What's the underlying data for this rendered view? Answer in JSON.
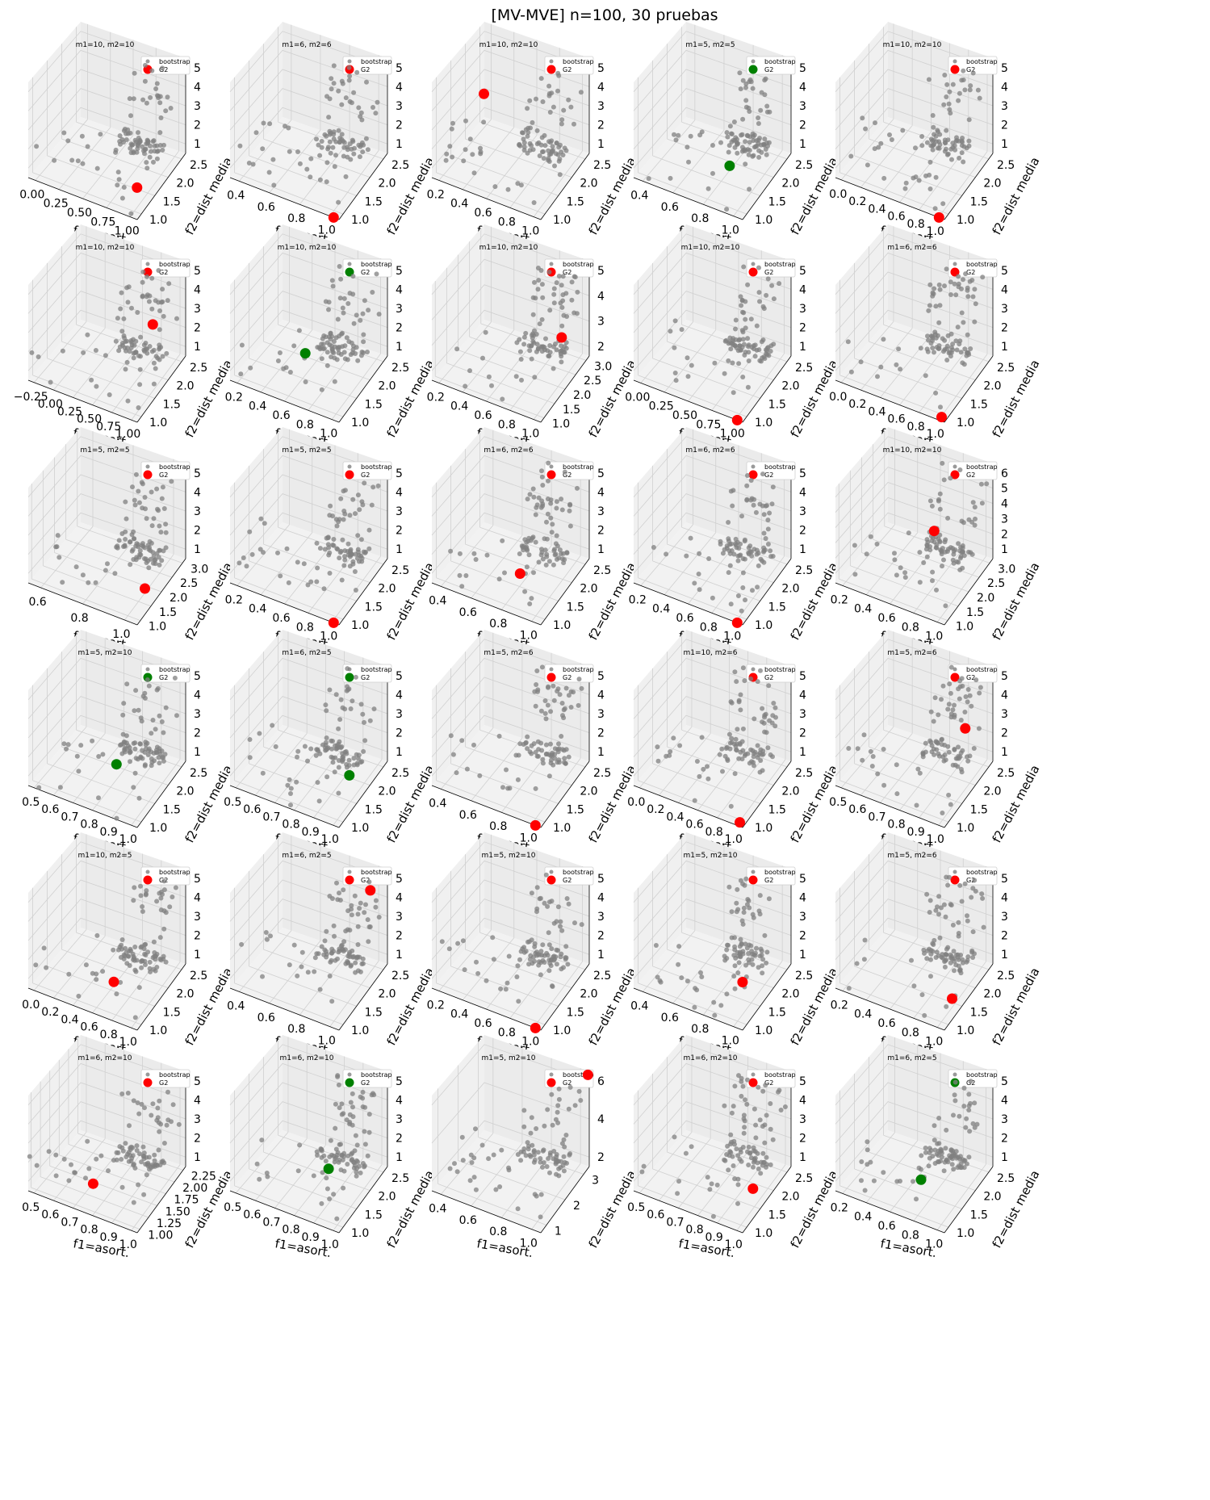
{
  "figure": {
    "title": "[MV-MVE] n=100, 30 pruebas",
    "grid": {
      "rows": 6,
      "cols": 5
    }
  },
  "colors": {
    "bootstrap": "#808080",
    "g2_red": "#ff0000",
    "g2_green": "#008000",
    "pane_left": "#f0f0f0",
    "pane_right": "#ebebeb",
    "pane_floor": "#f2f2f2",
    "gridline": "#d0d0d0"
  },
  "chart_data": [
    {
      "type": "scatter",
      "title": "m1=10, m2=10",
      "xlabel": "f1=asort.",
      "ylabel": "f2=dist media",
      "xticks": [
        "0.00",
        "0.25",
        "0.50",
        "0.75",
        "1.00"
      ],
      "yticks": [
        "1.0",
        "1.5",
        "2.0",
        "2.5"
      ],
      "zticks": [
        "1",
        "2",
        "3",
        "4",
        "5"
      ],
      "legend": [
        "bootstrap",
        "G2"
      ],
      "g2_color": "red",
      "g2": [
        1.0,
        1.2,
        2.0
      ],
      "seed": 1
    },
    {
      "type": "scatter",
      "title": "m1=6, m2=6",
      "xlabel": "f1=asort.",
      "ylabel": "f2=dist media",
      "xticks": [
        "0.4",
        "0.6",
        "0.8",
        "1.0"
      ],
      "yticks": [
        "1.0",
        "1.5",
        "2.0",
        "2.5"
      ],
      "zticks": [
        "1",
        "2",
        "3",
        "4",
        "5"
      ],
      "legend": [
        "bootstrap",
        "G2"
      ],
      "g2_color": "red",
      "g2": [
        1.0,
        1.0,
        1.0
      ],
      "seed": 2
    },
    {
      "type": "scatter",
      "title": "m1=10, m2=10",
      "xlabel": "f1=asort.",
      "ylabel": "f2=dist media",
      "xticks": [
        "0.2",
        "0.4",
        "0.6",
        "0.8",
        "1.0"
      ],
      "yticks": [
        "1.0",
        "1.5",
        "2.0",
        "2.5"
      ],
      "zticks": [
        "1",
        "2",
        "3",
        "4",
        "5"
      ],
      "legend": [
        "bootstrap",
        "G2"
      ],
      "g2_color": "red",
      "g2": [
        0.3,
        1.8,
        4.0
      ],
      "seed": 3
    },
    {
      "type": "scatter",
      "title": "m1=5, m2=5",
      "xlabel": "f1=asort.",
      "ylabel": "f2=dist media",
      "xticks": [
        "0.4",
        "0.6",
        "0.8",
        "1.0"
      ],
      "yticks": [
        "1.0",
        "1.5",
        "2.0",
        "2.5"
      ],
      "zticks": [
        "1",
        "2",
        "3",
        "4",
        "5"
      ],
      "legend": [
        "bootstrap",
        "G2"
      ],
      "g2_color": "green",
      "g2": [
        0.8,
        1.5,
        2.2
      ],
      "seed": 4
    },
    {
      "type": "scatter",
      "title": "m1=10, m2=10",
      "xlabel": "f1=asort.",
      "ylabel": "f2=dist media",
      "xticks": [
        "0.0",
        "0.2",
        "0.4",
        "0.6",
        "0.8",
        "1.0"
      ],
      "yticks": [
        "1.0",
        "1.5",
        "2.0",
        "2.5"
      ],
      "zticks": [
        "1",
        "2",
        "3",
        "4",
        "5"
      ],
      "legend": [
        "bootstrap",
        "G2"
      ],
      "g2_color": "red",
      "g2": [
        1.0,
        1.0,
        1.0
      ],
      "seed": 5
    },
    {
      "type": "scatter",
      "title": "m1=10, m2=10",
      "xlabel": "f1=asort.",
      "ylabel": "f2=dist media",
      "xticks": [
        "−0.25",
        "0.00",
        "0.25",
        "0.50",
        "0.75",
        "1.00"
      ],
      "yticks": [
        "1.0",
        "1.5",
        "2.0",
        "2.5"
      ],
      "zticks": [
        "1",
        "2",
        "3",
        "4",
        "5"
      ],
      "legend": [
        "bootstrap",
        "G2"
      ],
      "g2_color": "red",
      "g2": [
        1.0,
        1.8,
        4.0
      ],
      "seed": 6
    },
    {
      "type": "scatter",
      "title": "m1=10, m2=10",
      "xlabel": "f1=asort.",
      "ylabel": "f2=dist media",
      "xticks": [
        "0.2",
        "0.4",
        "0.6",
        "0.8",
        "1.0"
      ],
      "yticks": [
        "1.0",
        "1.5",
        "2.0",
        "2.5"
      ],
      "zticks": [
        "1",
        "2",
        "3",
        "4",
        "5"
      ],
      "legend": [
        "bootstrap",
        "G2"
      ],
      "g2_color": "green",
      "g2": [
        0.6,
        1.5,
        2.5
      ],
      "seed": 7
    },
    {
      "type": "scatter",
      "title": "m1=10, m2=10",
      "xlabel": "f1=asort.",
      "ylabel": "f2=dist media",
      "xticks": [
        "0.2",
        "0.4",
        "0.6",
        "0.8",
        "1.0"
      ],
      "yticks": [
        "1.0",
        "1.5",
        "2.0",
        "2.5",
        "3.0"
      ],
      "zticks": [
        "2",
        "3",
        "4",
        "5"
      ],
      "legend": [
        "bootstrap",
        "G2"
      ],
      "g2_color": "red",
      "g2": [
        1.0,
        2.0,
        3.2
      ],
      "seed": 8
    },
    {
      "type": "scatter",
      "title": "m1=10, m2=10",
      "xlabel": "f1=asort.",
      "ylabel": "f2=dist media",
      "xticks": [
        "0.00",
        "0.25",
        "0.50",
        "0.75",
        "1.00"
      ],
      "yticks": [
        "1.0",
        "1.5",
        "2.0",
        "2.5"
      ],
      "zticks": [
        "1",
        "2",
        "3",
        "4",
        "5"
      ],
      "legend": [
        "bootstrap",
        "G2"
      ],
      "g2_color": "red",
      "g2": [
        1.0,
        1.0,
        1.0
      ],
      "seed": 9
    },
    {
      "type": "scatter",
      "title": "m1=6, m2=6",
      "xlabel": "f1=asort.",
      "ylabel": "f2=dist media",
      "xticks": [
        "0.0",
        "0.2",
        "0.4",
        "0.6",
        "0.8",
        "1.0"
      ],
      "yticks": [
        "1.0",
        "1.5",
        "2.0",
        "2.5"
      ],
      "zticks": [
        "1",
        "2",
        "3",
        "4",
        "5"
      ],
      "legend": [
        "bootstrap",
        "G2"
      ],
      "g2_color": "red",
      "g2": [
        1.0,
        1.1,
        1.0
      ],
      "seed": 10
    },
    {
      "type": "scatter",
      "title": "m1=5, m2=5",
      "xlabel": "f1=asort.",
      "ylabel": "f2=dist media",
      "xticks": [
        "0.6",
        "0.8",
        "1.0"
      ],
      "yticks": [
        "1.0",
        "1.5",
        "2.0",
        "2.5",
        "3.0"
      ],
      "zticks": [
        "1",
        "2",
        "3",
        "4",
        "5"
      ],
      "legend": [
        "bootstrap",
        "G2"
      ],
      "g2_color": "red",
      "g2": [
        1.0,
        1.5,
        1.8
      ],
      "seed": 11
    },
    {
      "type": "scatter",
      "title": "m1=5, m2=5",
      "xlabel": "f1=asort.",
      "ylabel": "f2=dist media",
      "xticks": [
        "0.2",
        "0.4",
        "0.6",
        "0.8",
        "1.0"
      ],
      "yticks": [
        "1.0",
        "1.5",
        "2.0",
        "2.5"
      ],
      "zticks": [
        "1",
        "2",
        "3",
        "4",
        "5"
      ],
      "legend": [
        "bootstrap",
        "G2"
      ],
      "g2_color": "red",
      "g2": [
        1.0,
        1.0,
        1.0
      ],
      "seed": 12
    },
    {
      "type": "scatter",
      "title": "m1=6, m2=6",
      "xlabel": "f1=asort.",
      "ylabel": "f2=dist media",
      "xticks": [
        "0.4",
        "0.6",
        "0.8",
        "1.0"
      ],
      "yticks": [
        "1.0",
        "1.5",
        "2.0",
        "2.5"
      ],
      "zticks": [
        "1",
        "2",
        "3",
        "4",
        "5"
      ],
      "legend": [
        "bootstrap",
        "G2"
      ],
      "g2_color": "red",
      "g2": [
        0.7,
        1.6,
        1.8
      ],
      "seed": 13
    },
    {
      "type": "scatter",
      "title": "m1=6, m2=6",
      "xlabel": "f1=asort.",
      "ylabel": "f2=dist media",
      "xticks": [
        "0.2",
        "0.4",
        "0.6",
        "0.8",
        "1.0"
      ],
      "yticks": [
        "1.0",
        "1.5",
        "2.0",
        "2.5"
      ],
      "zticks": [
        "1",
        "2",
        "3",
        "4",
        "5"
      ],
      "legend": [
        "bootstrap",
        "G2"
      ],
      "g2_color": "red",
      "g2": [
        1.0,
        1.0,
        1.0
      ],
      "seed": 14
    },
    {
      "type": "scatter",
      "title": "m1=10, m2=10",
      "xlabel": "f1=asort.",
      "ylabel": "f2=dist media",
      "xticks": [
        "0.2",
        "0.4",
        "0.6",
        "0.8",
        "1.0"
      ],
      "yticks": [
        "1.0",
        "1.5",
        "2.0",
        "2.5",
        "3.0"
      ],
      "zticks": [
        "1",
        "2",
        "3",
        "4",
        "5",
        "6"
      ],
      "legend": [
        "bootstrap",
        "G2"
      ],
      "g2_color": "red",
      "g2": [
        0.7,
        2.0,
        3.6
      ],
      "seed": 15
    },
    {
      "type": "scatter",
      "title": "m1=5, m2=10",
      "xlabel": "f1=asort.",
      "ylabel": "f2=dist media",
      "xticks": [
        "0.5",
        "0.6",
        "0.7",
        "0.8",
        "0.9",
        "1.0"
      ],
      "yticks": [
        "1.0",
        "1.5",
        "2.0",
        "2.5"
      ],
      "zticks": [
        "1",
        "2",
        "3",
        "4",
        "5"
      ],
      "legend": [
        "bootstrap",
        "G2"
      ],
      "g2_color": "green",
      "g2": [
        0.7,
        1.6,
        2.3
      ],
      "seed": 16
    },
    {
      "type": "scatter",
      "title": "m1=6, m2=5",
      "xlabel": "f1=asort.",
      "ylabel": "f2=dist media",
      "xticks": [
        "0.5",
        "0.6",
        "0.7",
        "0.8",
        "0.9",
        "1.0"
      ],
      "yticks": [
        "1.0",
        "1.5",
        "2.0",
        "2.5"
      ],
      "zticks": [
        "1",
        "2",
        "3",
        "4",
        "5"
      ],
      "legend": [
        "bootstrap",
        "G2"
      ],
      "g2_color": "green",
      "g2": [
        0.95,
        1.8,
        2.0
      ],
      "seed": 17
    },
    {
      "type": "scatter",
      "title": "m1=5, m2=6",
      "xlabel": "f1=asort.",
      "ylabel": "f2=dist media",
      "xticks": [
        "0.4",
        "0.6",
        "0.8",
        "1.0"
      ],
      "yticks": [
        "1.0",
        "1.5",
        "2.0",
        "2.5"
      ],
      "zticks": [
        "1",
        "2",
        "3",
        "4",
        "5"
      ],
      "legend": [
        "bootstrap",
        "G2"
      ],
      "g2_color": "red",
      "g2": [
        1.0,
        1.0,
        1.0
      ],
      "seed": 18
    },
    {
      "type": "scatter",
      "title": "m1=10, m2=6",
      "xlabel": "f1=asort.",
      "ylabel": "f2=dist media",
      "xticks": [
        "0.0",
        "0.2",
        "0.4",
        "0.6",
        "0.8",
        "1.0"
      ],
      "yticks": [
        "1.0",
        "1.5",
        "2.0",
        "2.5"
      ],
      "zticks": [
        "1",
        "2",
        "3",
        "4",
        "5"
      ],
      "legend": [
        "bootstrap",
        "G2"
      ],
      "g2_color": "red",
      "g2": [
        1.0,
        1.1,
        1.0
      ],
      "seed": 19
    },
    {
      "type": "scatter",
      "title": "m1=5, m2=6",
      "xlabel": "f1=asort.",
      "ylabel": "f2=dist media",
      "xticks": [
        "0.5",
        "0.6",
        "0.7",
        "0.8",
        "0.9",
        "1.0"
      ],
      "yticks": [
        "1.0",
        "1.5",
        "2.0",
        "2.5"
      ],
      "zticks": [
        "1",
        "2",
        "3",
        "4",
        "5"
      ],
      "legend": [
        "bootstrap",
        "G2"
      ],
      "g2_color": "red",
      "g2": [
        1.0,
        2.0,
        3.8
      ],
      "seed": 20
    },
    {
      "type": "scatter",
      "title": "m1=10, m2=5",
      "xlabel": "f1=asort.",
      "ylabel": "f2=dist media",
      "xticks": [
        "0.0",
        "0.2",
        "0.4",
        "0.6",
        "0.8",
        "1.0"
      ],
      "yticks": [
        "1.0",
        "1.5",
        "2.0",
        "2.5"
      ],
      "zticks": [
        "1",
        "2",
        "3",
        "4",
        "5"
      ],
      "legend": [
        "bootstrap",
        "G2"
      ],
      "g2_color": "red",
      "g2": [
        0.7,
        1.5,
        1.8
      ],
      "seed": 21
    },
    {
      "type": "scatter",
      "title": "m1=6, m2=5",
      "xlabel": "f1=asort.",
      "ylabel": "f2=dist media",
      "xticks": [
        "0.4",
        "0.6",
        "0.8",
        "1.0"
      ],
      "yticks": [
        "1.0",
        "1.5",
        "2.0",
        "2.5"
      ],
      "zticks": [
        "1",
        "2",
        "3",
        "4",
        "5"
      ],
      "legend": [
        "bootstrap",
        "G2"
      ],
      "g2_color": "red",
      "g2": [
        1.0,
        2.4,
        5.0
      ],
      "seed": 22
    },
    {
      "type": "scatter",
      "title": "m1=5, m2=10",
      "xlabel": "f1=asort.",
      "ylabel": "f2=dist media",
      "xticks": [
        "0.2",
        "0.4",
        "0.6",
        "0.8",
        "1.0"
      ],
      "yticks": [
        "1.0",
        "1.5",
        "2.0",
        "2.5"
      ],
      "zticks": [
        "1",
        "2",
        "3",
        "4",
        "5"
      ],
      "legend": [
        "bootstrap",
        "G2"
      ],
      "g2_color": "red",
      "g2": [
        1.0,
        1.0,
        1.0
      ],
      "seed": 23
    },
    {
      "type": "scatter",
      "title": "m1=5, m2=10",
      "xlabel": "f1=asort.",
      "ylabel": "f2=dist media",
      "xticks": [
        "0.4",
        "0.6",
        "0.8",
        "1.0"
      ],
      "yticks": [
        "1.0",
        "1.5",
        "2.0",
        "2.5"
      ],
      "zticks": [
        "1",
        "2",
        "3",
        "4",
        "5"
      ],
      "legend": [
        "bootstrap",
        "G2"
      ],
      "g2_color": "red",
      "g2": [
        0.9,
        1.6,
        2.0
      ],
      "seed": 24
    },
    {
      "type": "scatter",
      "title": "m1=5, m2=6",
      "xlabel": "f1=asort.",
      "ylabel": "f2=dist media",
      "xticks": [
        "0.2",
        "0.4",
        "0.6",
        "0.8",
        "1.0"
      ],
      "yticks": [
        "1.0",
        "1.5",
        "2.0",
        "2.5"
      ],
      "zticks": [
        "1",
        "2",
        "3",
        "4",
        "5"
      ],
      "legend": [
        "bootstrap",
        "G2"
      ],
      "g2_color": "red",
      "g2": [
        1.0,
        1.5,
        1.6
      ],
      "seed": 25
    },
    {
      "type": "scatter",
      "title": "m1=6, m2=10",
      "xlabel": "f1=asort.",
      "ylabel": "f2=dist media",
      "xticks": [
        "0.5",
        "0.6",
        "0.7",
        "0.8",
        "0.9",
        "1.0"
      ],
      "yticks": [
        "1.00",
        "1.25",
        "1.50",
        "1.75",
        "2.00",
        "2.25"
      ],
      "zticks": [
        "1",
        "2",
        "3",
        "4",
        "5"
      ],
      "legend": [
        "bootstrap",
        "G2"
      ],
      "g2_color": "red",
      "g2": [
        0.5,
        1.5,
        1.5
      ],
      "seed": 26
    },
    {
      "type": "scatter",
      "title": "m1=6, m2=10",
      "xlabel": "f1=asort.",
      "ylabel": "f2=dist media",
      "xticks": [
        "0.5",
        "0.6",
        "0.7",
        "0.8",
        "0.9",
        "1.0"
      ],
      "yticks": [
        "1.0",
        "1.5",
        "2.0",
        "2.5"
      ],
      "zticks": [
        "1",
        "2",
        "3",
        "4",
        "5"
      ],
      "legend": [
        "bootstrap",
        "G2"
      ],
      "g2_color": "green",
      "g2": [
        0.8,
        1.6,
        2.5
      ],
      "seed": 27
    },
    {
      "type": "scatter",
      "title": "m1=5, m2=10",
      "xlabel": "f1=asort.",
      "ylabel": "f2=dist media",
      "xticks": [
        "0.4",
        "0.6",
        "0.8",
        "1.0"
      ],
      "yticks": [
        "1",
        "2",
        "3"
      ],
      "zticks": [
        "2",
        "4",
        "6"
      ],
      "legend": [
        "bootstrap",
        "G2"
      ],
      "g2_color": "red",
      "g2": [
        1.0,
        3.0,
        7.0
      ],
      "seed": 28
    },
    {
      "type": "scatter",
      "title": "m1=6, m2=10",
      "xlabel": "f1=asort.",
      "ylabel": "f2=dist media",
      "xticks": [
        "0.5",
        "0.6",
        "0.7",
        "0.8",
        "0.9",
        "1.0"
      ],
      "yticks": [
        "1.0",
        "1.5",
        "2.0",
        "2.5"
      ],
      "zticks": [
        "1",
        "2",
        "3",
        "4",
        "5"
      ],
      "legend": [
        "bootstrap",
        "G2"
      ],
      "g2_color": "red",
      "g2": [
        1.0,
        1.6,
        2.0
      ],
      "seed": 29
    },
    {
      "type": "scatter",
      "title": "m1=6, m2=5",
      "xlabel": "f1=asort.",
      "ylabel": "f2=dist media",
      "xticks": [
        "0.2",
        "0.4",
        "0.6",
        "0.8",
        "1.0"
      ],
      "yticks": [
        "1.0",
        "1.5",
        "2.0",
        "2.5"
      ],
      "zticks": [
        "1",
        "2",
        "3",
        "4",
        "5"
      ],
      "legend": [
        "bootstrap",
        "G2"
      ],
      "g2_color": "green",
      "g2": [
        0.7,
        1.5,
        2.0
      ],
      "seed": 30
    }
  ]
}
